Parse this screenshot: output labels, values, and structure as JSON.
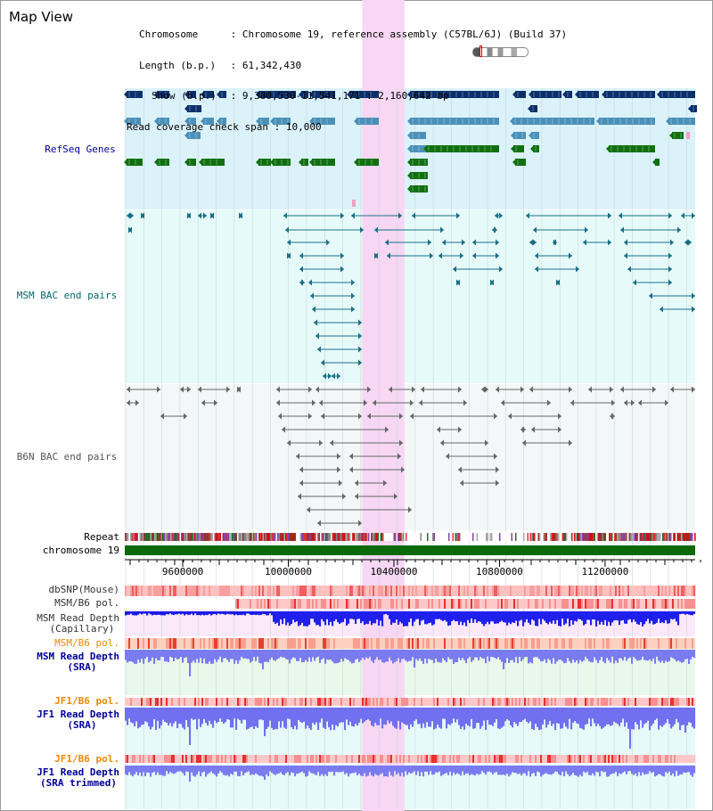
{
  "header": {
    "title": "Map View",
    "chromosome_label": "Chromosome",
    "chromosome_value": "Chromosome 19, reference assembly (C57BL/6J) (Build 37)",
    "length_label": "Length (b.p.)",
    "length_value": "61,342,430",
    "show_label": "Show (b.p.)",
    "show_value": "9,380,530-11,541,171 : 2,160,642 bp",
    "coverage_label": "Read coverage check span",
    "coverage_value": "10,000"
  },
  "tracks": {
    "refseq": "RefSeq Genes",
    "msm_bac": "MSM BAC end pairs",
    "b6n_bac": "B6N BAC end pairs",
    "repeat": "Repeat",
    "chromosome": "chromosome 19",
    "dbsnp": "dbSNP(Mouse)",
    "msm_b6_pol_1": "MSM/B6 pol.",
    "msm_depth_cap_1": "MSM Read Depth",
    "msm_depth_cap_2": "(Capillary)",
    "msm_b6_pol_2": "MSM/B6 pol.",
    "msm_depth_sra_1": "MSM Read Depth",
    "msm_depth_sra_2": "(SRA)",
    "jf1_b6_pol_1": "JF1/B6 pol.",
    "jf1_depth_sra_1": "JF1 Read Depth",
    "jf1_depth_sra_2": "(SRA)",
    "jf1_b6_pol_2": "JF1/B6 pol.",
    "jf1_depth_trim_1": "JF1 Read Depth",
    "jf1_depth_trim_2": "(SRA trimmed)"
  },
  "axis": {
    "ticks": [
      "9600000",
      "10000000",
      "10400000",
      "10800000",
      "11200000"
    ],
    "view_start": 9380530,
    "view_end": 11541171,
    "highlight_start": 10280000,
    "highlight_end": 10440000
  },
  "colors": {
    "refseq_bg": "#dbf2fa",
    "bac_bg": "#e6fafa",
    "highlight": "#f7d7f3",
    "label_refseq": "#000099",
    "label_msm": "#006b6b",
    "label_b6n": "#555555",
    "label_pol": "#ee8800",
    "label_depth": "#000099",
    "gene_dark": "#0b2f6b",
    "gene_mid": "#4a90b8",
    "gene_green": "#107010",
    "chrom_green": "#0a6a0a"
  }
}
